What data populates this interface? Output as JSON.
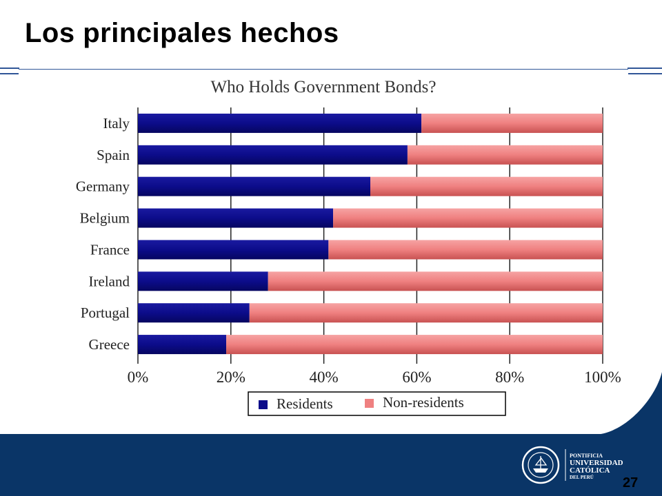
{
  "slide": {
    "title": "Los principales hechos",
    "page_number": "27",
    "institution": {
      "line1": "PONTIFICIA",
      "line2": "UNIVERSIDAD",
      "line3": "CATÓLICA",
      "line4": "DEL PERÚ"
    }
  },
  "colors": {
    "residents": "#0c0c8a",
    "non_residents": "#ef8080",
    "footer": "#0a3567",
    "rule": "#2f5597"
  },
  "chart_data": {
    "type": "bar",
    "orientation": "horizontal",
    "stacked": true,
    "title": "Who Holds Government Bonds?",
    "categories": [
      "Italy",
      "Spain",
      "Germany",
      "Belgium",
      "France",
      "Ireland",
      "Portugal",
      "Greece"
    ],
    "series": [
      {
        "name": "Residents",
        "values": [
          61,
          58,
          50,
          42,
          41,
          28,
          24,
          19
        ]
      },
      {
        "name": "Non-residents",
        "values": [
          39,
          42,
          50,
          58,
          59,
          72,
          76,
          81
        ]
      }
    ],
    "x_ticks": [
      "0%",
      "20%",
      "40%",
      "60%",
      "80%",
      "100%"
    ],
    "xlim": [
      0,
      100
    ],
    "grid": true,
    "legend": "bottom"
  }
}
